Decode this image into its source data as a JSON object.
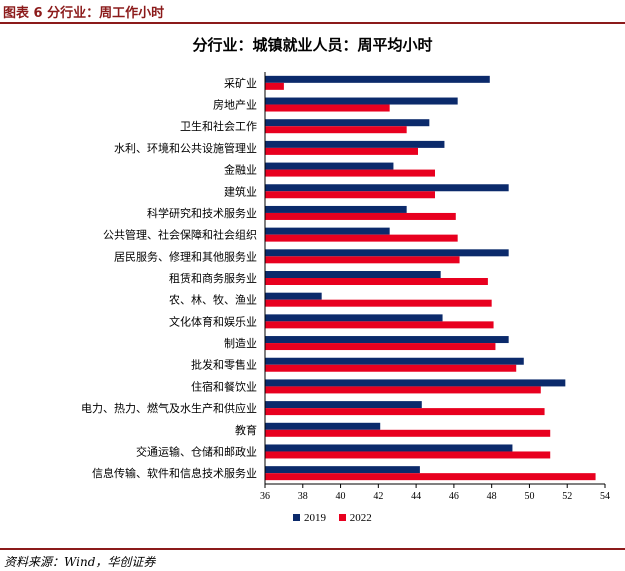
{
  "figure_label": "图表 6   分行业：周工作小时",
  "source_note": "资料来源：Wind，华创证券",
  "colors": {
    "series_2019": "#0b2a6b",
    "series_2022": "#e8001f",
    "header_rule": "#8b1a1a"
  },
  "chart_data": {
    "type": "bar",
    "orientation": "horizontal",
    "title": "分行业：城镇就业人员：周平均小时",
    "xlabel": "",
    "ylabel": "",
    "xlim": [
      36,
      54
    ],
    "x_ticks": [
      "36",
      "38",
      "40",
      "42",
      "44",
      "46",
      "48",
      "50",
      "52",
      "54"
    ],
    "legend_position": "bottom",
    "grid": false,
    "categories": [
      "采矿业",
      "房地产业",
      "卫生和社会工作",
      "水利、环境和公共设施管理业",
      "金融业",
      "建筑业",
      "科学研究和技术服务业",
      "公共管理、社会保障和社会组织",
      "居民服务、修理和其他服务业",
      "租赁和商务服务业",
      "农、林、牧、渔业",
      "文化体育和娱乐业",
      "制造业",
      "批发和零售业",
      "住宿和餐饮业",
      "电力、热力、燃气及水生产和供应业",
      "教育",
      "交通运输、仓储和邮政业",
      "信息传输、软件和信息技术服务业"
    ],
    "series": [
      {
        "name": "2019",
        "values": [
          47.9,
          46.2,
          44.7,
          45.5,
          42.8,
          48.9,
          43.5,
          42.6,
          48.9,
          45.3,
          39.0,
          45.4,
          48.9,
          49.7,
          51.9,
          44.3,
          42.1,
          49.1,
          44.2
        ]
      },
      {
        "name": "2022",
        "values": [
          37.0,
          42.6,
          43.5,
          44.1,
          45.0,
          45.0,
          46.1,
          46.2,
          46.3,
          47.8,
          48.0,
          48.1,
          48.2,
          49.3,
          50.6,
          50.8,
          51.1,
          51.1,
          53.5
        ]
      }
    ]
  }
}
